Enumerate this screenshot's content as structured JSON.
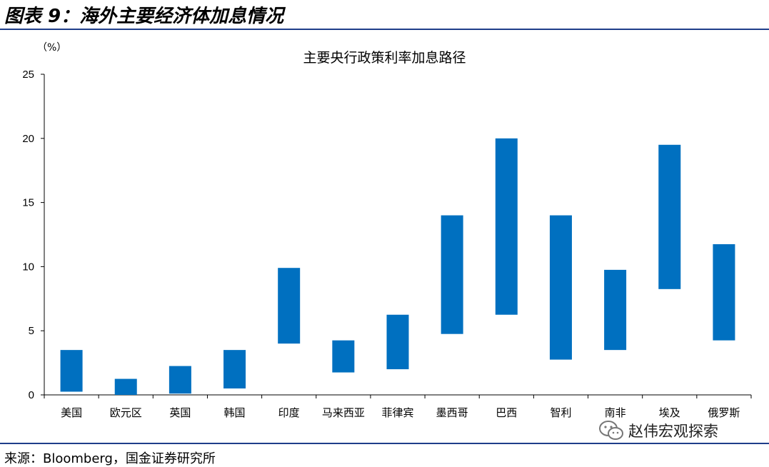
{
  "figure": {
    "title": "图表 9：海外主要经济体加息情况",
    "source": "来源：Bloomberg，国金证券研究所",
    "watermark": "赵伟宏观探索",
    "watermark_icon": "wechat-icon"
  },
  "chart_data": {
    "type": "bar",
    "subtype": "floating-range",
    "title": "主要央行政策利率加息路径",
    "unit_label": "（%）",
    "xlabel": "",
    "ylabel": "",
    "ylim": [
      0,
      25
    ],
    "yticks": [
      0,
      5,
      10,
      15,
      20,
      25
    ],
    "grid": false,
    "legend": "none",
    "color": "#0070c0",
    "categories": [
      "美国",
      "欧元区",
      "英国",
      "韩国",
      "印度",
      "马来西亚",
      "菲律宾",
      "墨西哥",
      "巴西",
      "智利",
      "南非",
      "埃及",
      "俄罗斯"
    ],
    "low": [
      0.25,
      0.0,
      0.1,
      0.5,
      4.0,
      1.75,
      2.0,
      4.75,
      6.25,
      2.75,
      3.5,
      8.25,
      4.25
    ],
    "high": [
      3.5,
      1.25,
      2.25,
      3.5,
      9.9,
      4.25,
      6.25,
      14.0,
      20.0,
      14.0,
      9.75,
      19.5,
      11.75
    ]
  }
}
